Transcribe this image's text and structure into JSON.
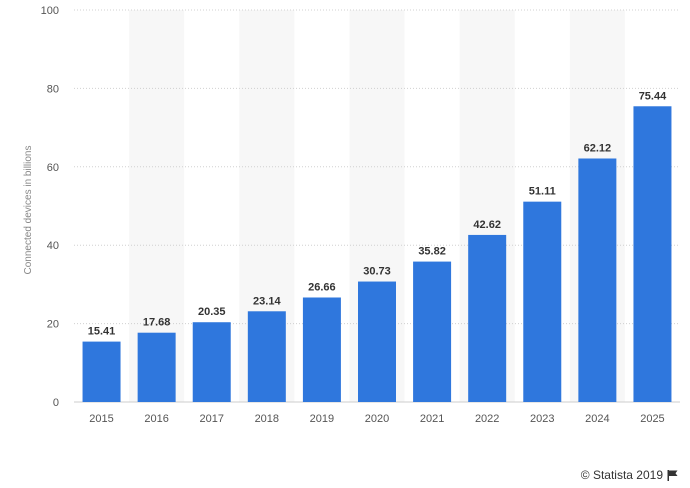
{
  "chart_data": {
    "type": "bar",
    "categories": [
      "2015",
      "2016",
      "2017",
      "2018",
      "2019",
      "2020",
      "2021",
      "2022",
      "2023",
      "2024",
      "2025"
    ],
    "values": [
      15.41,
      17.68,
      20.35,
      23.14,
      26.66,
      30.73,
      35.82,
      42.62,
      51.11,
      62.12,
      75.44
    ],
    "data_labels": [
      "15.41",
      "17.68",
      "20.35",
      "23.14",
      "26.66",
      "30.73",
      "35.82",
      "42.62",
      "51.11",
      "62.12",
      "75.44"
    ],
    "ylabel": "Connected devices in billions",
    "xlabel": "",
    "ylim": [
      0,
      100
    ],
    "yticks": [
      0,
      20,
      40,
      60,
      80,
      100
    ],
    "ytick_labels": [
      "0",
      "20",
      "40",
      "60",
      "80",
      "100"
    ],
    "grid": true,
    "bar_color": "#2f77dd",
    "band_color": "#f7f7f7"
  },
  "credit": {
    "text": "© Statista 2019",
    "icon": "flag-icon"
  }
}
